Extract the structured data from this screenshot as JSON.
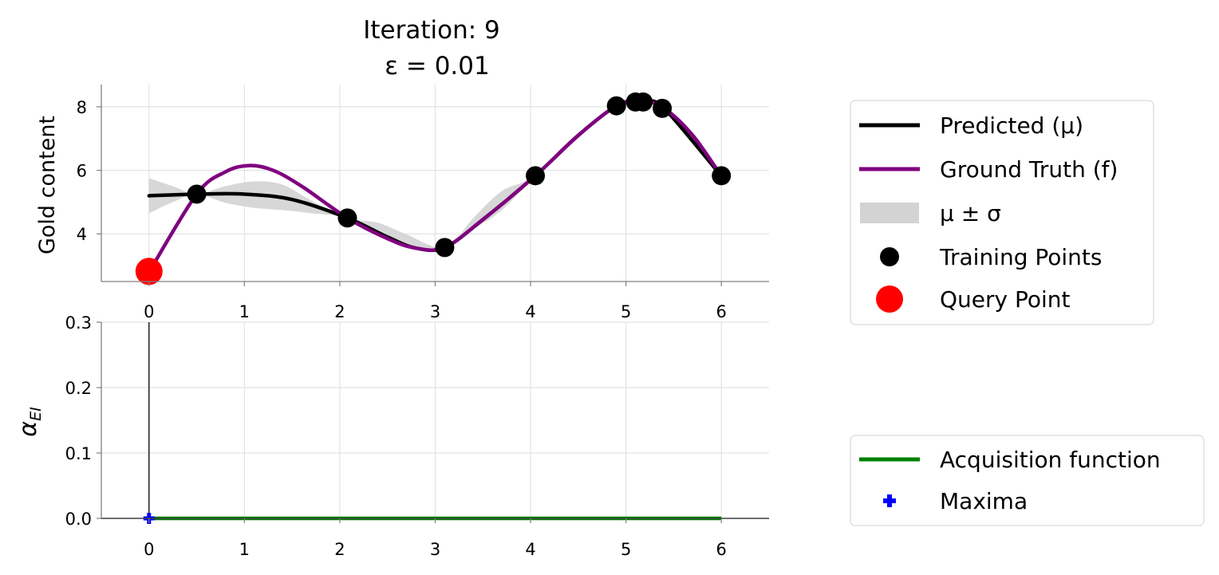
{
  "chart_data": [
    {
      "type": "line",
      "title_line1": "Iteration: 9",
      "title_line2": "ε = 0.01",
      "ylabel": "Gold content",
      "xlim": [
        -0.5,
        6.5
      ],
      "ylim": [
        2.5,
        8.7
      ],
      "xticks": [
        0,
        1,
        2,
        3,
        4,
        5,
        6
      ],
      "yticks": [
        4,
        6,
        8
      ],
      "grid": true,
      "legend_position": "right",
      "colors": {
        "predicted": "#000000",
        "ground_truth": "#800080",
        "band": "#d3d3d3",
        "training": "#000000",
        "query": "#ff0000"
      },
      "series": [
        {
          "name": "Predicted (μ)",
          "x": [
            0,
            0.5,
            1.0,
            1.5,
            2.08,
            2.5,
            2.8,
            3.1,
            3.5,
            4.05,
            4.5,
            4.9,
            5.1,
            5.2,
            5.4,
            6.0
          ],
          "y": [
            5.2,
            5.25,
            5.25,
            5.08,
            4.5,
            3.9,
            3.55,
            3.57,
            4.45,
            5.83,
            7.1,
            8.03,
            8.15,
            8.15,
            7.95,
            5.82
          ]
        },
        {
          "name": "Ground Truth (f)",
          "x": [
            0,
            0.5,
            0.8,
            1.05,
            1.3,
            1.6,
            2.08,
            2.5,
            2.8,
            3.1,
            3.5,
            4.05,
            4.5,
            4.9,
            5.15,
            5.4,
            5.7,
            6.0
          ],
          "y": [
            2.8,
            5.25,
            5.95,
            6.15,
            6.0,
            5.5,
            4.5,
            3.85,
            3.55,
            3.57,
            4.45,
            5.83,
            7.1,
            8.03,
            8.2,
            7.95,
            7.1,
            5.82
          ]
        }
      ],
      "band": {
        "name": "μ ± σ",
        "x": [
          0,
          0.25,
          0.5,
          0.8,
          1.1,
          1.4,
          1.7,
          2.08,
          2.4,
          2.7,
          3.1,
          3.4,
          3.7,
          4.05,
          4.5,
          4.9,
          5.4,
          6.0
        ],
        "lower": [
          4.65,
          5.0,
          5.25,
          4.98,
          4.82,
          4.75,
          4.65,
          4.5,
          4.0,
          3.55,
          3.57,
          4.15,
          4.75,
          5.83,
          7.1,
          8.03,
          7.95,
          5.82
        ],
        "upper": [
          5.75,
          5.5,
          5.25,
          5.5,
          5.65,
          5.55,
          5.05,
          4.5,
          4.35,
          3.98,
          3.57,
          4.5,
          5.35,
          5.83,
          7.1,
          8.03,
          7.95,
          5.82
        ]
      },
      "training_points": {
        "name": "Training Points",
        "x": [
          0.5,
          2.08,
          3.1,
          4.05,
          4.9,
          5.1,
          5.18,
          5.38,
          6.0
        ],
        "y": [
          5.25,
          4.5,
          3.57,
          5.83,
          8.03,
          8.15,
          8.15,
          7.95,
          5.83
        ]
      },
      "query_point": {
        "name": "Query Point",
        "x": 0,
        "y": 2.82
      },
      "legend": [
        "Predicted (μ)",
        "Ground Truth (f)",
        "μ ± σ",
        "Training Points",
        "Query Point"
      ]
    },
    {
      "type": "line",
      "ylabel": "α_EI",
      "xlim": [
        -0.5,
        6.5
      ],
      "ylim": [
        0,
        0.3
      ],
      "xticks": [
        0,
        1,
        2,
        3,
        4,
        5,
        6
      ],
      "yticks": [
        "0.0",
        "0.1",
        "0.2",
        "0.3"
      ],
      "grid": true,
      "legend_position": "right",
      "colors": {
        "acquisition": "#008000",
        "maxima": "#0000ff"
      },
      "series": [
        {
          "name": "Acquisition function",
          "x": [
            0,
            6
          ],
          "y": [
            0,
            0
          ]
        }
      ],
      "maxima": {
        "name": "Maxima",
        "x": 0,
        "y": 0
      },
      "vline_x": 0,
      "legend": [
        "Acquisition function",
        "Maxima"
      ]
    }
  ]
}
